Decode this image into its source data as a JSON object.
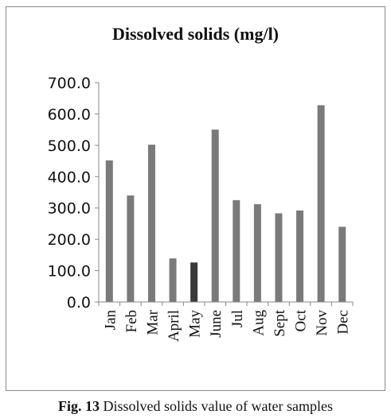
{
  "chart_data": {
    "type": "bar",
    "title": "Dissolved solids (mg/l)",
    "categories": [
      "Jan",
      "Feb",
      "Mar",
      "April",
      "May",
      "June",
      "Jul",
      "Aug",
      "Sept",
      "Oct",
      "Nov",
      "Dec"
    ],
    "values": [
      452,
      340,
      502,
      139,
      126,
      550,
      325,
      312,
      283,
      292,
      628,
      240
    ],
    "ylim": [
      0,
      700
    ],
    "yticks": [
      "0.0",
      "100.0",
      "200.0",
      "300.0",
      "400.0",
      "500.0",
      "600.0",
      "700.0"
    ],
    "grid": false,
    "legend": "none"
  },
  "colors": {
    "bar": "#7a7a7a",
    "bar_highlight": "#3a3a3a",
    "axis": "#888888"
  },
  "highlight_index": 4,
  "caption": {
    "label": "Fig. 13",
    "text": "Dissolved solids value of water samples"
  }
}
